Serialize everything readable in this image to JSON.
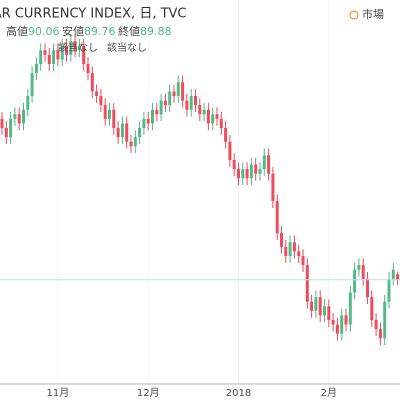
{
  "chart_data": {
    "type": "candlestick",
    "title": "LLAR CURRENCY INDEX, 日, TVC",
    "ohlc_labels": [
      "高値",
      "安値",
      "終値"
    ],
    "na_labels": [
      "該当なし",
      "該当なし"
    ],
    "market_label": "市場",
    "up_color": "#53b987",
    "down_color": "#eb4d5c",
    "ylim": [
      87.6,
      96.0
    ],
    "categories": [
      null,
      null,
      null,
      null,
      null,
      null,
      null,
      null,
      null,
      null,
      null,
      null,
      null,
      "11月",
      null,
      null,
      null,
      null,
      null,
      null,
      null,
      null,
      null,
      null,
      null,
      null,
      null,
      null,
      null,
      null,
      null,
      null,
      null,
      null,
      "12月",
      null,
      null,
      null,
      null,
      null,
      null,
      null,
      null,
      null,
      null,
      null,
      null,
      null,
      null,
      null,
      null,
      null,
      null,
      null,
      null,
      "2018",
      null,
      null,
      null,
      null,
      null,
      null,
      null,
      null,
      null,
      null,
      null,
      null,
      null,
      null,
      null,
      null,
      null,
      null,
      null,
      null,
      "2月",
      null,
      null,
      null,
      null,
      null,
      null,
      null,
      null,
      null,
      null,
      null,
      null,
      null,
      null,
      null,
      null
    ],
    "open": [
      93.4,
      93.2,
      93.0,
      93.4,
      93.5,
      93.3,
      93.6,
      93.9,
      94.4,
      94.6,
      94.9,
      94.8,
      94.6,
      94.9,
      94.7,
      95.0,
      94.8,
      95.1,
      94.9,
      95.0,
      94.6,
      94.4,
      94.0,
      93.9,
      93.7,
      93.4,
      93.6,
      93.2,
      93.0,
      93.3,
      92.9,
      92.8,
      93.0,
      93.2,
      93.4,
      93.3,
      93.6,
      93.5,
      93.8,
      93.7,
      94.0,
      93.9,
      94.2,
      93.8,
      93.6,
      93.9,
      93.7,
      93.5,
      93.6,
      93.3,
      93.5,
      93.4,
      93.2,
      92.9,
      92.5,
      92.3,
      92.1,
      92.3,
      92.1,
      92.4,
      92.2,
      92.3,
      92.6,
      92.2,
      91.6,
      90.9,
      90.6,
      90.4,
      90.7,
      90.5,
      90.4,
      90.2,
      89.4,
      89.2,
      89.5,
      89.1,
      89.3,
      89.0,
      88.9,
      88.7,
      89.1,
      88.9,
      89.6,
      90.1,
      90.2,
      89.9,
      89.5,
      89.0,
      88.8,
      88.6,
      89.4,
      89.9,
      90.0
    ],
    "high": [
      93.55,
      93.35,
      93.55,
      93.65,
      93.65,
      93.75,
      94.05,
      94.55,
      94.75,
      95.05,
      95.05,
      94.95,
      95.05,
      95.05,
      95.15,
      95.15,
      95.25,
      95.25,
      95.15,
      95.15,
      94.75,
      94.55,
      94.15,
      94.05,
      93.85,
      93.75,
      93.75,
      93.35,
      93.45,
      93.45,
      93.05,
      93.15,
      93.35,
      93.55,
      93.55,
      93.75,
      93.75,
      93.95,
      93.95,
      94.15,
      94.15,
      94.35,
      94.35,
      93.95,
      94.05,
      94.05,
      93.85,
      93.75,
      93.75,
      93.65,
      93.65,
      93.55,
      93.35,
      93.05,
      92.65,
      92.45,
      92.45,
      92.45,
      92.55,
      92.55,
      92.45,
      92.75,
      92.75,
      92.35,
      91.75,
      91.05,
      90.75,
      90.85,
      90.85,
      90.65,
      90.55,
      90.35,
      89.55,
      89.65,
      89.65,
      89.45,
      89.45,
      89.15,
      89.05,
      89.25,
      89.25,
      89.75,
      90.25,
      90.35,
      90.35,
      90.05,
      89.65,
      89.15,
      88.95,
      89.55,
      90.05,
      90.25,
      90.06
    ],
    "low": [
      93.05,
      92.85,
      92.85,
      93.25,
      93.15,
      93.15,
      93.45,
      93.75,
      94.25,
      94.45,
      94.65,
      94.45,
      94.45,
      94.55,
      94.55,
      94.65,
      94.65,
      94.75,
      94.75,
      94.45,
      94.25,
      93.85,
      93.75,
      93.55,
      93.25,
      93.25,
      93.05,
      92.85,
      92.85,
      92.75,
      92.65,
      92.65,
      92.85,
      93.05,
      93.15,
      93.15,
      93.35,
      93.35,
      93.55,
      93.55,
      93.75,
      93.75,
      93.65,
      93.45,
      93.45,
      93.55,
      93.35,
      93.35,
      93.15,
      93.15,
      93.25,
      93.05,
      92.75,
      92.35,
      92.15,
      91.95,
      91.95,
      91.95,
      91.95,
      92.05,
      92.05,
      92.15,
      92.05,
      91.45,
      90.75,
      90.45,
      90.25,
      90.25,
      90.35,
      90.25,
      90.05,
      89.25,
      89.05,
      89.05,
      88.95,
      88.95,
      88.85,
      88.75,
      88.55,
      88.55,
      88.75,
      88.75,
      89.45,
      89.95,
      89.75,
      89.35,
      88.85,
      88.65,
      88.45,
      88.45,
      89.25,
      89.75,
      89.76
    ],
    "close": [
      93.2,
      93.0,
      93.4,
      93.5,
      93.3,
      93.6,
      93.9,
      94.4,
      94.6,
      94.9,
      94.8,
      94.6,
      94.9,
      94.7,
      95.0,
      94.8,
      95.1,
      94.9,
      95.0,
      94.6,
      94.4,
      94.0,
      93.9,
      93.7,
      93.4,
      93.6,
      93.2,
      93.0,
      93.3,
      92.9,
      92.8,
      93.0,
      93.2,
      93.4,
      93.3,
      93.6,
      93.5,
      93.8,
      93.7,
      94.0,
      93.9,
      94.2,
      93.8,
      93.6,
      93.9,
      93.7,
      93.5,
      93.6,
      93.3,
      93.5,
      93.4,
      93.2,
      92.9,
      92.5,
      92.3,
      92.1,
      92.3,
      92.1,
      92.4,
      92.2,
      92.3,
      92.6,
      92.2,
      91.6,
      90.9,
      90.6,
      90.4,
      90.7,
      90.5,
      90.4,
      90.2,
      89.4,
      89.2,
      89.5,
      89.1,
      89.3,
      89.0,
      88.9,
      88.7,
      89.1,
      88.9,
      89.6,
      90.1,
      90.2,
      89.9,
      89.5,
      89.0,
      88.8,
      88.6,
      89.4,
      89.9,
      90.1,
      89.88
    ]
  }
}
